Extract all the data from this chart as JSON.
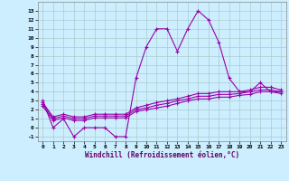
{
  "x": [
    0,
    1,
    2,
    3,
    4,
    5,
    6,
    7,
    8,
    9,
    10,
    11,
    12,
    13,
    14,
    15,
    16,
    17,
    18,
    19,
    20,
    21,
    22,
    23
  ],
  "y_main": [
    3,
    0,
    1,
    -1,
    0,
    0,
    0,
    -1,
    -1,
    5.5,
    9,
    11,
    11,
    8.5,
    11,
    13,
    12,
    9.5,
    5.5,
    4,
    4,
    5,
    4,
    4
  ],
  "y_line1": [
    2.8,
    1.2,
    1.5,
    1.2,
    1.2,
    1.5,
    1.5,
    1.5,
    1.5,
    2.2,
    2.5,
    2.8,
    3.0,
    3.2,
    3.5,
    3.8,
    3.8,
    4.0,
    4.0,
    4.0,
    4.2,
    4.5,
    4.5,
    4.2
  ],
  "y_line2": [
    2.6,
    1.0,
    1.3,
    1.0,
    1.0,
    1.3,
    1.3,
    1.3,
    1.3,
    2.0,
    2.2,
    2.5,
    2.7,
    3.0,
    3.2,
    3.5,
    3.5,
    3.7,
    3.7,
    3.8,
    4.0,
    4.2,
    4.2,
    4.0
  ],
  "y_line3": [
    2.4,
    0.8,
    1.1,
    0.8,
    0.8,
    1.1,
    1.1,
    1.1,
    1.1,
    1.8,
    2.0,
    2.2,
    2.4,
    2.7,
    3.0,
    3.2,
    3.2,
    3.4,
    3.4,
    3.6,
    3.7,
    4.0,
    4.0,
    3.8
  ],
  "color": "#9900AA",
  "bg_color": "#cceeff",
  "grid_color": "#aacccc",
  "xlabel": "Windchill (Refroidissement éolien,°C)",
  "ylim": [
    -1.5,
    14
  ],
  "xlim": [
    -0.5,
    23.5
  ],
  "yticks": [
    -1,
    0,
    1,
    2,
    3,
    4,
    5,
    6,
    7,
    8,
    9,
    10,
    11,
    12,
    13
  ],
  "xticks": [
    0,
    1,
    2,
    3,
    4,
    5,
    6,
    7,
    8,
    9,
    10,
    11,
    12,
    13,
    14,
    15,
    16,
    17,
    18,
    19,
    20,
    21,
    22,
    23
  ]
}
